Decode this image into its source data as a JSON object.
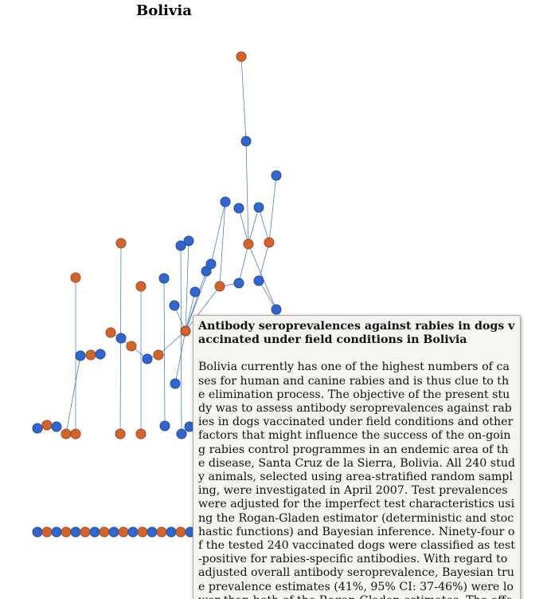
{
  "page": {
    "title": "Bolivia"
  },
  "legend_colors": {
    "blue": "#3366cc",
    "orange": "#d2652d"
  },
  "tooltip": {
    "title": "Antibody seroprevalences against rabies in dogs vaccinated under field conditions in Bolivia",
    "abstract": "Bolivia currently has one of the highest numbers of cases for human and canine rabies and is thus clue to the elimination process. The objective of the present study was to assess antibody seroprevalences against rabies in dogs vaccinated under field conditions and other factors that might influence the success of the on-going rabies control programmes in an endemic area of the disease, Santa Cruz de la Sierra, Bolivia. All 240 study animals, selected using area-stratified random sampling, were investigated in April 2007. Test prevalences were adjusted for the imperfect test characteristics using the Rogan-Gladen estimator (deterministic and stochastic functions) and Bayesian inference. Ninety-four of the tested 240 vaccinated dogs were classified as test-positive for rabies-specific antibodies. With regard to adjusted overall antibody seroprevalence, Bayesian true prevalence estimates (41%, 95% CI: 37-46%) were lower than both of the Rogan-Gladen estimates. The effect of various epid"
  }
}
